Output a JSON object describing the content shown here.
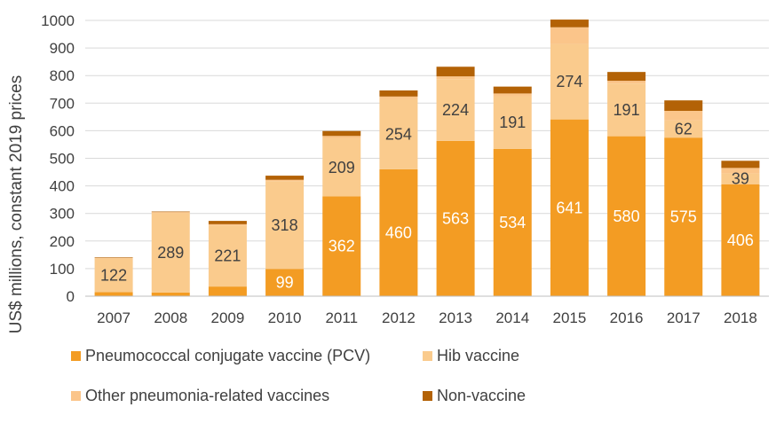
{
  "chart_data": {
    "type": "bar",
    "stacked": true,
    "categories": [
      "2007",
      "2008",
      "2009",
      "2010",
      "2011",
      "2012",
      "2013",
      "2014",
      "2015",
      "2016",
      "2017",
      "2018"
    ],
    "ylabel": "US$ millions, constant 2019 prices",
    "ylim": [
      0,
      1000
    ],
    "yticks": [
      0,
      100,
      200,
      300,
      400,
      500,
      600,
      700,
      800,
      900,
      1000
    ],
    "grid": true,
    "legend_position": "bottom",
    "series": [
      {
        "name": "Pneumococcal conjugate vaccine (PCV)",
        "color": "#F39C23",
        "label_color": "#FFFFFF",
        "values": [
          15,
          13,
          35,
          99,
          362,
          460,
          563,
          534,
          641,
          580,
          575,
          406
        ],
        "labels": [
          "",
          "",
          "",
          "99",
          "362",
          "460",
          "563",
          "534",
          "641",
          "580",
          "575",
          "406"
        ]
      },
      {
        "name": "Hib vaccine",
        "color": "#FACB8D",
        "label_color": "#404040",
        "values": [
          122,
          289,
          221,
          318,
          209,
          254,
          224,
          191,
          274,
          191,
          62,
          39
        ],
        "labels": [
          "122",
          "289",
          "221",
          "318",
          "209",
          "254",
          "224",
          "191",
          "274",
          "191",
          "62",
          "39"
        ]
      },
      {
        "name": "Other pneumonia-related vaccines",
        "color": "#FBC58A",
        "label_color": "#404040",
        "values": [
          2,
          3,
          5,
          5,
          10,
          10,
          10,
          10,
          60,
          10,
          35,
          20
        ],
        "labels": [
          "",
          "",
          "",
          "",
          "",
          "",
          "",
          "",
          "",
          "",
          "",
          ""
        ]
      },
      {
        "name": "Non-vaccine",
        "color": "#B36206",
        "label_color": "#FFFFFF",
        "values": [
          2,
          2,
          12,
          15,
          18,
          22,
          35,
          25,
          28,
          32,
          38,
          26
        ],
        "labels": [
          "",
          "",
          "",
          "",
          "",
          "",
          "",
          "",
          "",
          "",
          "",
          ""
        ]
      }
    ]
  }
}
